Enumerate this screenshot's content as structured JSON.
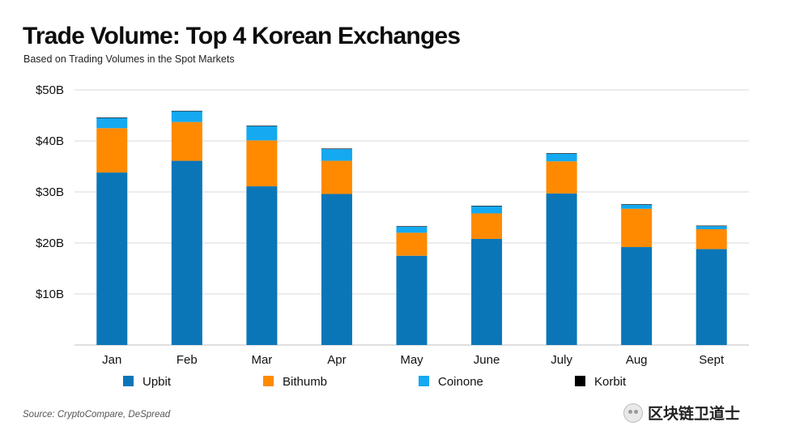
{
  "title": "Trade Volume: Top 4 Korean Exchanges",
  "subtitle": "Based on Trading Volumes in the Spot Markets",
  "source": "Source: CryptoCompare, DeSpread",
  "watermark": "区块链卫道士",
  "colors": {
    "Upbit": "#0a76b8",
    "Bithumb": "#ff8a00",
    "Coinone": "#14a9f0",
    "Korbit": "#000000",
    "grid": "#d9d9d9"
  },
  "chart_data": {
    "type": "bar",
    "stacked": true,
    "categories": [
      "Jan",
      "Feb",
      "Mar",
      "Apr",
      "May",
      "June",
      "July",
      "Aug",
      "Sept"
    ],
    "series": [
      {
        "name": "Upbit",
        "values": [
          33.8,
          36.1,
          31.1,
          29.6,
          17.5,
          20.8,
          29.7,
          19.2,
          18.8
        ]
      },
      {
        "name": "Bithumb",
        "values": [
          8.7,
          7.6,
          9.0,
          6.5,
          4.5,
          5.0,
          6.3,
          7.5,
          3.9
        ]
      },
      {
        "name": "Coinone",
        "values": [
          2.0,
          2.1,
          2.8,
          2.3,
          1.2,
          1.4,
          1.5,
          0.8,
          0.6
        ]
      },
      {
        "name": "Korbit",
        "values": [
          0.1,
          0.1,
          0.1,
          0.1,
          0.1,
          0.1,
          0.1,
          0.1,
          0.1
        ]
      }
    ],
    "ylim": [
      0,
      50
    ],
    "yticks": [
      10,
      20,
      30,
      40,
      50
    ],
    "ytick_labels": [
      "$10B",
      "$20B",
      "$30B",
      "$40B",
      "$50B"
    ],
    "grid": true,
    "legend_position": "bottom"
  }
}
